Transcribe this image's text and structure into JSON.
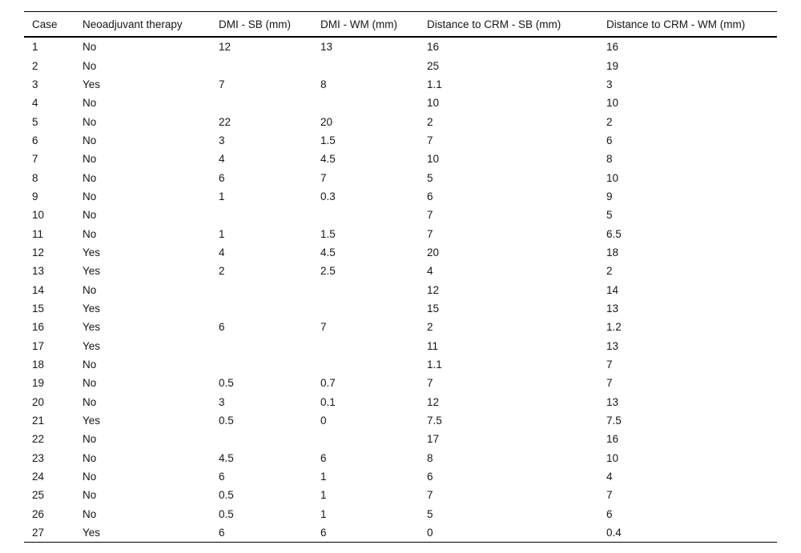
{
  "table": {
    "columns": [
      "Case",
      "Neoadjuvant therapy",
      "DMI - SB (mm)",
      "DMI - WM (mm)",
      "Distance to CRM - SB (mm)",
      "Distance to CRM - WM (mm)"
    ],
    "rows": [
      [
        "1",
        "No",
        "12",
        "13",
        "16",
        "16"
      ],
      [
        "2",
        "No",
        "",
        "",
        "25",
        "19"
      ],
      [
        "3",
        "Yes",
        "7",
        "8",
        "1.1",
        "3"
      ],
      [
        "4",
        "No",
        "",
        "",
        "10",
        "10"
      ],
      [
        "5",
        "No",
        "22",
        "20",
        "2",
        "2"
      ],
      [
        "6",
        "No",
        "3",
        "1.5",
        "7",
        "6"
      ],
      [
        "7",
        "No",
        "4",
        "4.5",
        "10",
        "8"
      ],
      [
        "8",
        "No",
        "6",
        "7",
        "5",
        "10"
      ],
      [
        "9",
        "No",
        "1",
        "0.3",
        "6",
        "9"
      ],
      [
        "10",
        "No",
        "",
        "",
        "7",
        "5"
      ],
      [
        "11",
        "No",
        "1",
        "1.5",
        "7",
        "6.5"
      ],
      [
        "12",
        "Yes",
        "4",
        "4.5",
        "20",
        "18"
      ],
      [
        "13",
        "Yes",
        "2",
        "2.5",
        "4",
        "2"
      ],
      [
        "14",
        "No",
        "",
        "",
        "12",
        "14"
      ],
      [
        "15",
        "Yes",
        "",
        "",
        "15",
        "13"
      ],
      [
        "16",
        "Yes",
        "6",
        "7",
        "2",
        "1.2"
      ],
      [
        "17",
        "Yes",
        "",
        "",
        "11",
        "13"
      ],
      [
        "18",
        "No",
        "",
        "",
        "1.1",
        "7"
      ],
      [
        "19",
        "No",
        "0.5",
        "0.7",
        "7",
        "7"
      ],
      [
        "20",
        "No",
        "3",
        "0.1",
        "12",
        "13"
      ],
      [
        "21",
        "Yes",
        "0.5",
        "0",
        "7.5",
        "7.5"
      ],
      [
        "22",
        "No",
        "",
        "",
        "17",
        "16"
      ],
      [
        "23",
        "No",
        "4.5",
        "6",
        "8",
        "10"
      ],
      [
        "24",
        "No",
        "6",
        "1",
        "6",
        "4"
      ],
      [
        "25",
        "No",
        "0.5",
        "1",
        "7",
        "7"
      ],
      [
        "26",
        "No",
        "0.5",
        "1",
        "5",
        "6"
      ],
      [
        "27",
        "Yes",
        "6",
        "6",
        "0",
        "0.4"
      ]
    ],
    "colors": {
      "text": "#161616",
      "rule": "#000000",
      "background": "#ffffff"
    }
  }
}
